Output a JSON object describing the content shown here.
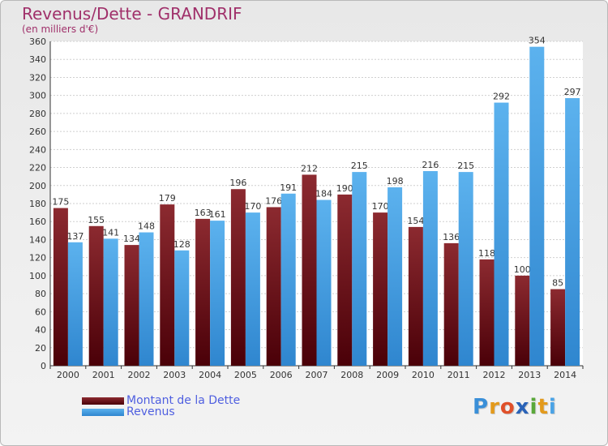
{
  "chart_data": {
    "type": "bar",
    "title": "Revenus/Dette - GRANDRIF",
    "subtitle": "(en milliers d'€)",
    "categories": [
      "2000",
      "2001",
      "2002",
      "2003",
      "2004",
      "2005",
      "2006",
      "2007",
      "2008",
      "2009",
      "2010",
      "2011",
      "2012",
      "2013",
      "2014"
    ],
    "series": [
      {
        "name": "Montant de la Dette",
        "color": "#7a1a1e",
        "values": [
          175,
          155,
          134,
          179,
          163,
          196,
          176,
          212,
          190,
          170,
          154,
          136,
          118,
          100,
          85
        ]
      },
      {
        "name": "Revenus",
        "color": "#4aa3e6",
        "values": [
          137,
          141,
          148,
          128,
          161,
          170,
          191,
          184,
          215,
          198,
          216,
          215,
          292,
          354,
          297
        ]
      }
    ],
    "ylim": [
      0,
      360
    ],
    "yticks": [
      0,
      20,
      40,
      60,
      80,
      100,
      120,
      140,
      160,
      180,
      200,
      220,
      240,
      260,
      280,
      300,
      320,
      340,
      360
    ],
    "grid": true,
    "legend_position": "bottom-left"
  },
  "logo": {
    "letters": [
      "P",
      "r",
      "o",
      "x",
      "i",
      "t",
      "i"
    ],
    "colors": [
      "#3a8fd8",
      "#e39a1c",
      "#e0502a",
      "#2a63b8",
      "#5aa83a",
      "#e39a1c",
      "#4aa3e6"
    ]
  }
}
